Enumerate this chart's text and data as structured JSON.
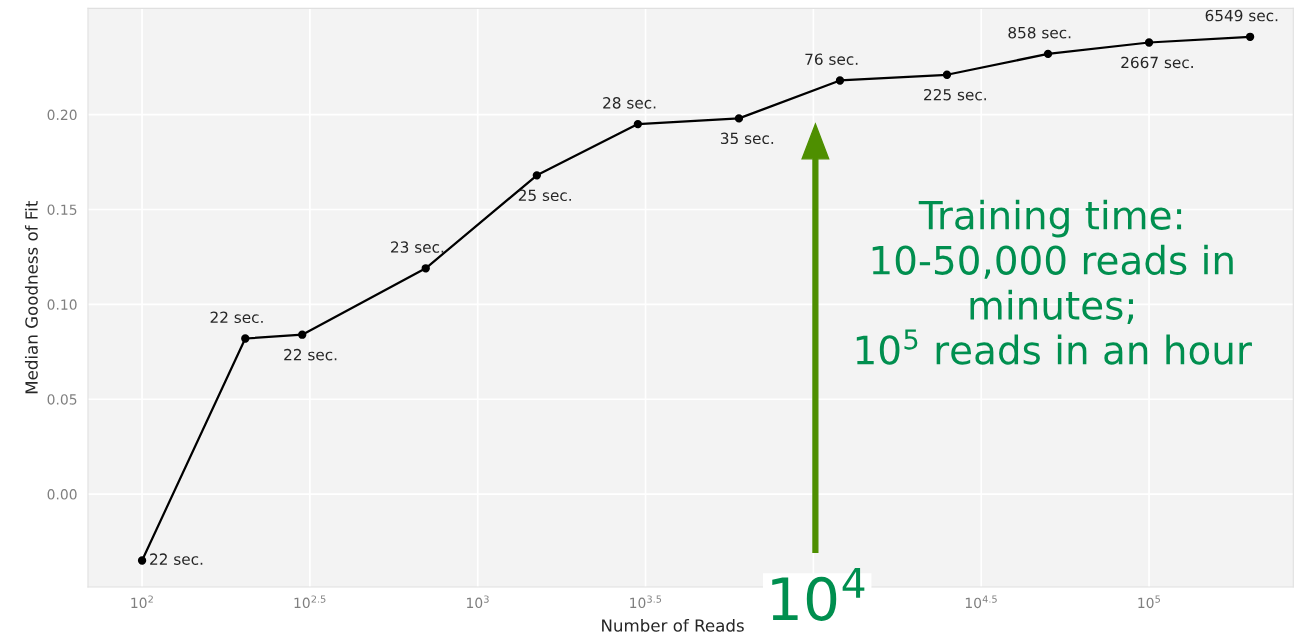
{
  "chart_data": {
    "type": "line",
    "xlabel": "Number of Reads",
    "ylabel": "Median Goodness of Fit",
    "log": "x",
    "grid": true,
    "marker": "circle",
    "line_style": "solid",
    "x": [
      100,
      203,
      300,
      700,
      1500,
      3000,
      6000,
      12000,
      25000,
      50000,
      100000,
      200000
    ],
    "series": [
      {
        "color": "#000000",
        "values": [
          -0.035,
          0.082,
          0.084,
          0.119,
          0.168,
          0.195,
          0.198,
          0.218,
          0.221,
          0.232,
          0.238,
          0.241
        ]
      }
    ],
    "xlim": [
      69,
      269000
    ],
    "xticks": [
      {
        "value": 100,
        "label": "10$^{2}$"
      },
      {
        "value": 316.2,
        "label": "10$^{2.5}$"
      },
      {
        "value": 1000,
        "label": "10$^{3}$"
      },
      {
        "value": 3162,
        "label": "10$^{3.5}$"
      },
      {
        "value": 10000,
        "label": null
      },
      {
        "value": 31623,
        "label": "10$^{4.5}$"
      },
      {
        "value": 100000,
        "label": "10$^{5}$"
      }
    ],
    "ylim": [
      -0.049,
      0.256
    ],
    "yticks": [
      {
        "value": 0.0,
        "label": "0.00"
      },
      {
        "value": 0.05,
        "label": "0.05"
      },
      {
        "value": 0.1,
        "label": "0.10"
      },
      {
        "value": 0.15,
        "label": "0.15"
      },
      {
        "value": 0.2,
        "label": "0.20"
      }
    ],
    "annotations": [
      {
        "text": "22 sec.",
        "x": 100,
        "y": -0.035
      },
      {
        "text": "22 sec.",
        "x": 203,
        "y": 0.082
      },
      {
        "text": "22 sec.",
        "x": 300,
        "y": 0.084
      },
      {
        "text": "23 sec.",
        "x": 700,
        "y": 0.119
      },
      {
        "text": "25 sec.",
        "x": 1500,
        "y": 0.168
      },
      {
        "text": "28 sec.",
        "x": 3000,
        "y": 0.195
      },
      {
        "text": "35 sec.",
        "x": 6000,
        "y": 0.198
      },
      {
        "text": "76 sec.",
        "x": 12000,
        "y": 0.218
      },
      {
        "text": "225 sec.",
        "x": 25000,
        "y": 0.221
      },
      {
        "text": "858 sec.",
        "x": 50000,
        "y": 0.232
      },
      {
        "text": "2667 sec.",
        "x": 100000,
        "y": 0.238
      },
      {
        "text": "6549 sec.",
        "x": 200000,
        "y": 0.241
      },
      "10$^{4}$",
      "Training time:\n10-50,000 reads in\nminutes;\n10$^{5}$ reads in an hour"
    ]
  }
}
